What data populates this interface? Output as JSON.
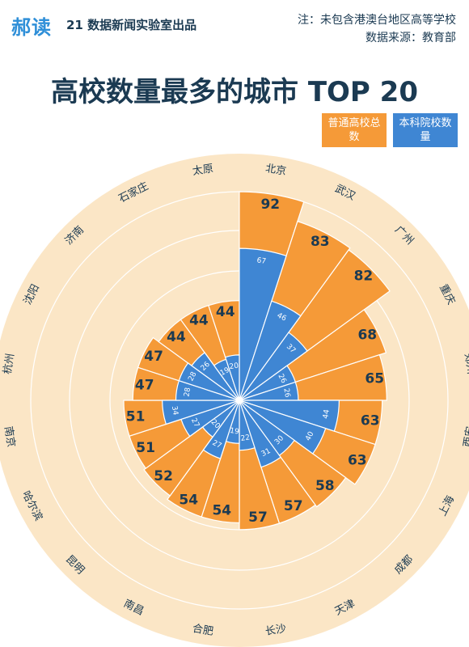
{
  "header": {
    "logo_text": "郝读",
    "producer": "21 数据新闻实验室出品",
    "note_line1": "注：未包含港澳台地区高等学校",
    "note_line2": "数据来源：教育部"
  },
  "colors": {
    "total": "#f59a38",
    "undergrad": "#3f86d3",
    "background_disc": "#fbe6c6",
    "text_dark": "#1b3a52"
  },
  "chart_data": {
    "type": "radial-bar",
    "title": "高校数量最多的城市 TOP 20",
    "legend": [
      {
        "label": "普通高校总数",
        "color": "#f59a38"
      },
      {
        "label": "本科院校数量",
        "color": "#3f86d3"
      }
    ],
    "categories": [
      "北京",
      "武汉",
      "广州",
      "重庆",
      "郑州",
      "西安",
      "上海",
      "成都",
      "天津",
      "长沙",
      "合肥",
      "南昌",
      "昆明",
      "哈尔滨",
      "南京",
      "杭州",
      "沈阳",
      "济南",
      "石家庄",
      "太原"
    ],
    "series": [
      {
        "name": "普通高校总数",
        "values": [
          92,
          83,
          82,
          68,
          65,
          63,
          63,
          58,
          57,
          57,
          54,
          54,
          52,
          51,
          51,
          47,
          47,
          44,
          44,
          44
        ]
      },
      {
        "name": "本科院校数量",
        "values": [
          67,
          46,
          37,
          26,
          26,
          44,
          40,
          30,
          31,
          22,
          19,
          27,
          20,
          27,
          34,
          28,
          28,
          26,
          19,
          20
        ]
      }
    ],
    "rmax": 92
  }
}
